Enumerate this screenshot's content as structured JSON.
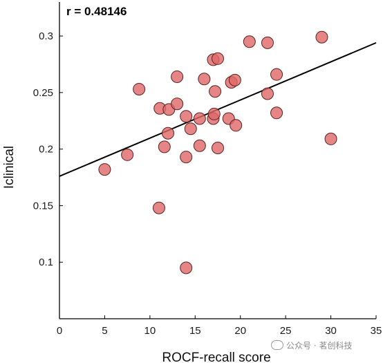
{
  "chart_data": {
    "type": "scatter",
    "xlabel": "ROCF-recall score",
    "ylabel": "Iclinical",
    "xlim": [
      0,
      35
    ],
    "ylim": [
      0.05,
      0.33
    ],
    "xticks": [
      0,
      5,
      10,
      15,
      20,
      25,
      30,
      35
    ],
    "yticks": [
      0.1,
      0.15,
      0.2,
      0.25,
      0.3
    ],
    "xtick_labels": [
      "0",
      "5",
      "10",
      "15",
      "20",
      "25",
      "30",
      "35"
    ],
    "ytick_labels": [
      "0.1",
      "0.15",
      "0.2",
      "0.25",
      "0.3"
    ],
    "annotation": "r = 0.48146",
    "marker_color": "#e06666",
    "marker_edge": "#5a2222",
    "line_color": "#000000",
    "grid": false,
    "points": [
      {
        "x": 5,
        "y": 0.182
      },
      {
        "x": 7.5,
        "y": 0.195
      },
      {
        "x": 8.8,
        "y": 0.253
      },
      {
        "x": 11,
        "y": 0.148
      },
      {
        "x": 11.1,
        "y": 0.236
      },
      {
        "x": 11.6,
        "y": 0.202
      },
      {
        "x": 12,
        "y": 0.214
      },
      {
        "x": 12.1,
        "y": 0.235
      },
      {
        "x": 13,
        "y": 0.264
      },
      {
        "x": 13,
        "y": 0.24
      },
      {
        "x": 14,
        "y": 0.229
      },
      {
        "x": 14,
        "y": 0.193
      },
      {
        "x": 14,
        "y": 0.095
      },
      {
        "x": 14.5,
        "y": 0.218
      },
      {
        "x": 15.5,
        "y": 0.227
      },
      {
        "x": 15.5,
        "y": 0.203
      },
      {
        "x": 16,
        "y": 0.262
      },
      {
        "x": 17,
        "y": 0.279
      },
      {
        "x": 17,
        "y": 0.227
      },
      {
        "x": 17.1,
        "y": 0.231
      },
      {
        "x": 17.2,
        "y": 0.251
      },
      {
        "x": 17.5,
        "y": 0.28
      },
      {
        "x": 17.5,
        "y": 0.201
      },
      {
        "x": 18.7,
        "y": 0.227
      },
      {
        "x": 19,
        "y": 0.259
      },
      {
        "x": 19.4,
        "y": 0.261
      },
      {
        "x": 19.5,
        "y": 0.221
      },
      {
        "x": 21,
        "y": 0.295
      },
      {
        "x": 23,
        "y": 0.294
      },
      {
        "x": 23,
        "y": 0.249
      },
      {
        "x": 24,
        "y": 0.266
      },
      {
        "x": 24,
        "y": 0.232
      },
      {
        "x": 29,
        "y": 0.299
      },
      {
        "x": 30,
        "y": 0.209
      }
    ],
    "fit_line": {
      "x": [
        0,
        35
      ],
      "y": [
        0.176,
        0.294
      ]
    }
  },
  "watermark": "公众号 · 茗创科技"
}
